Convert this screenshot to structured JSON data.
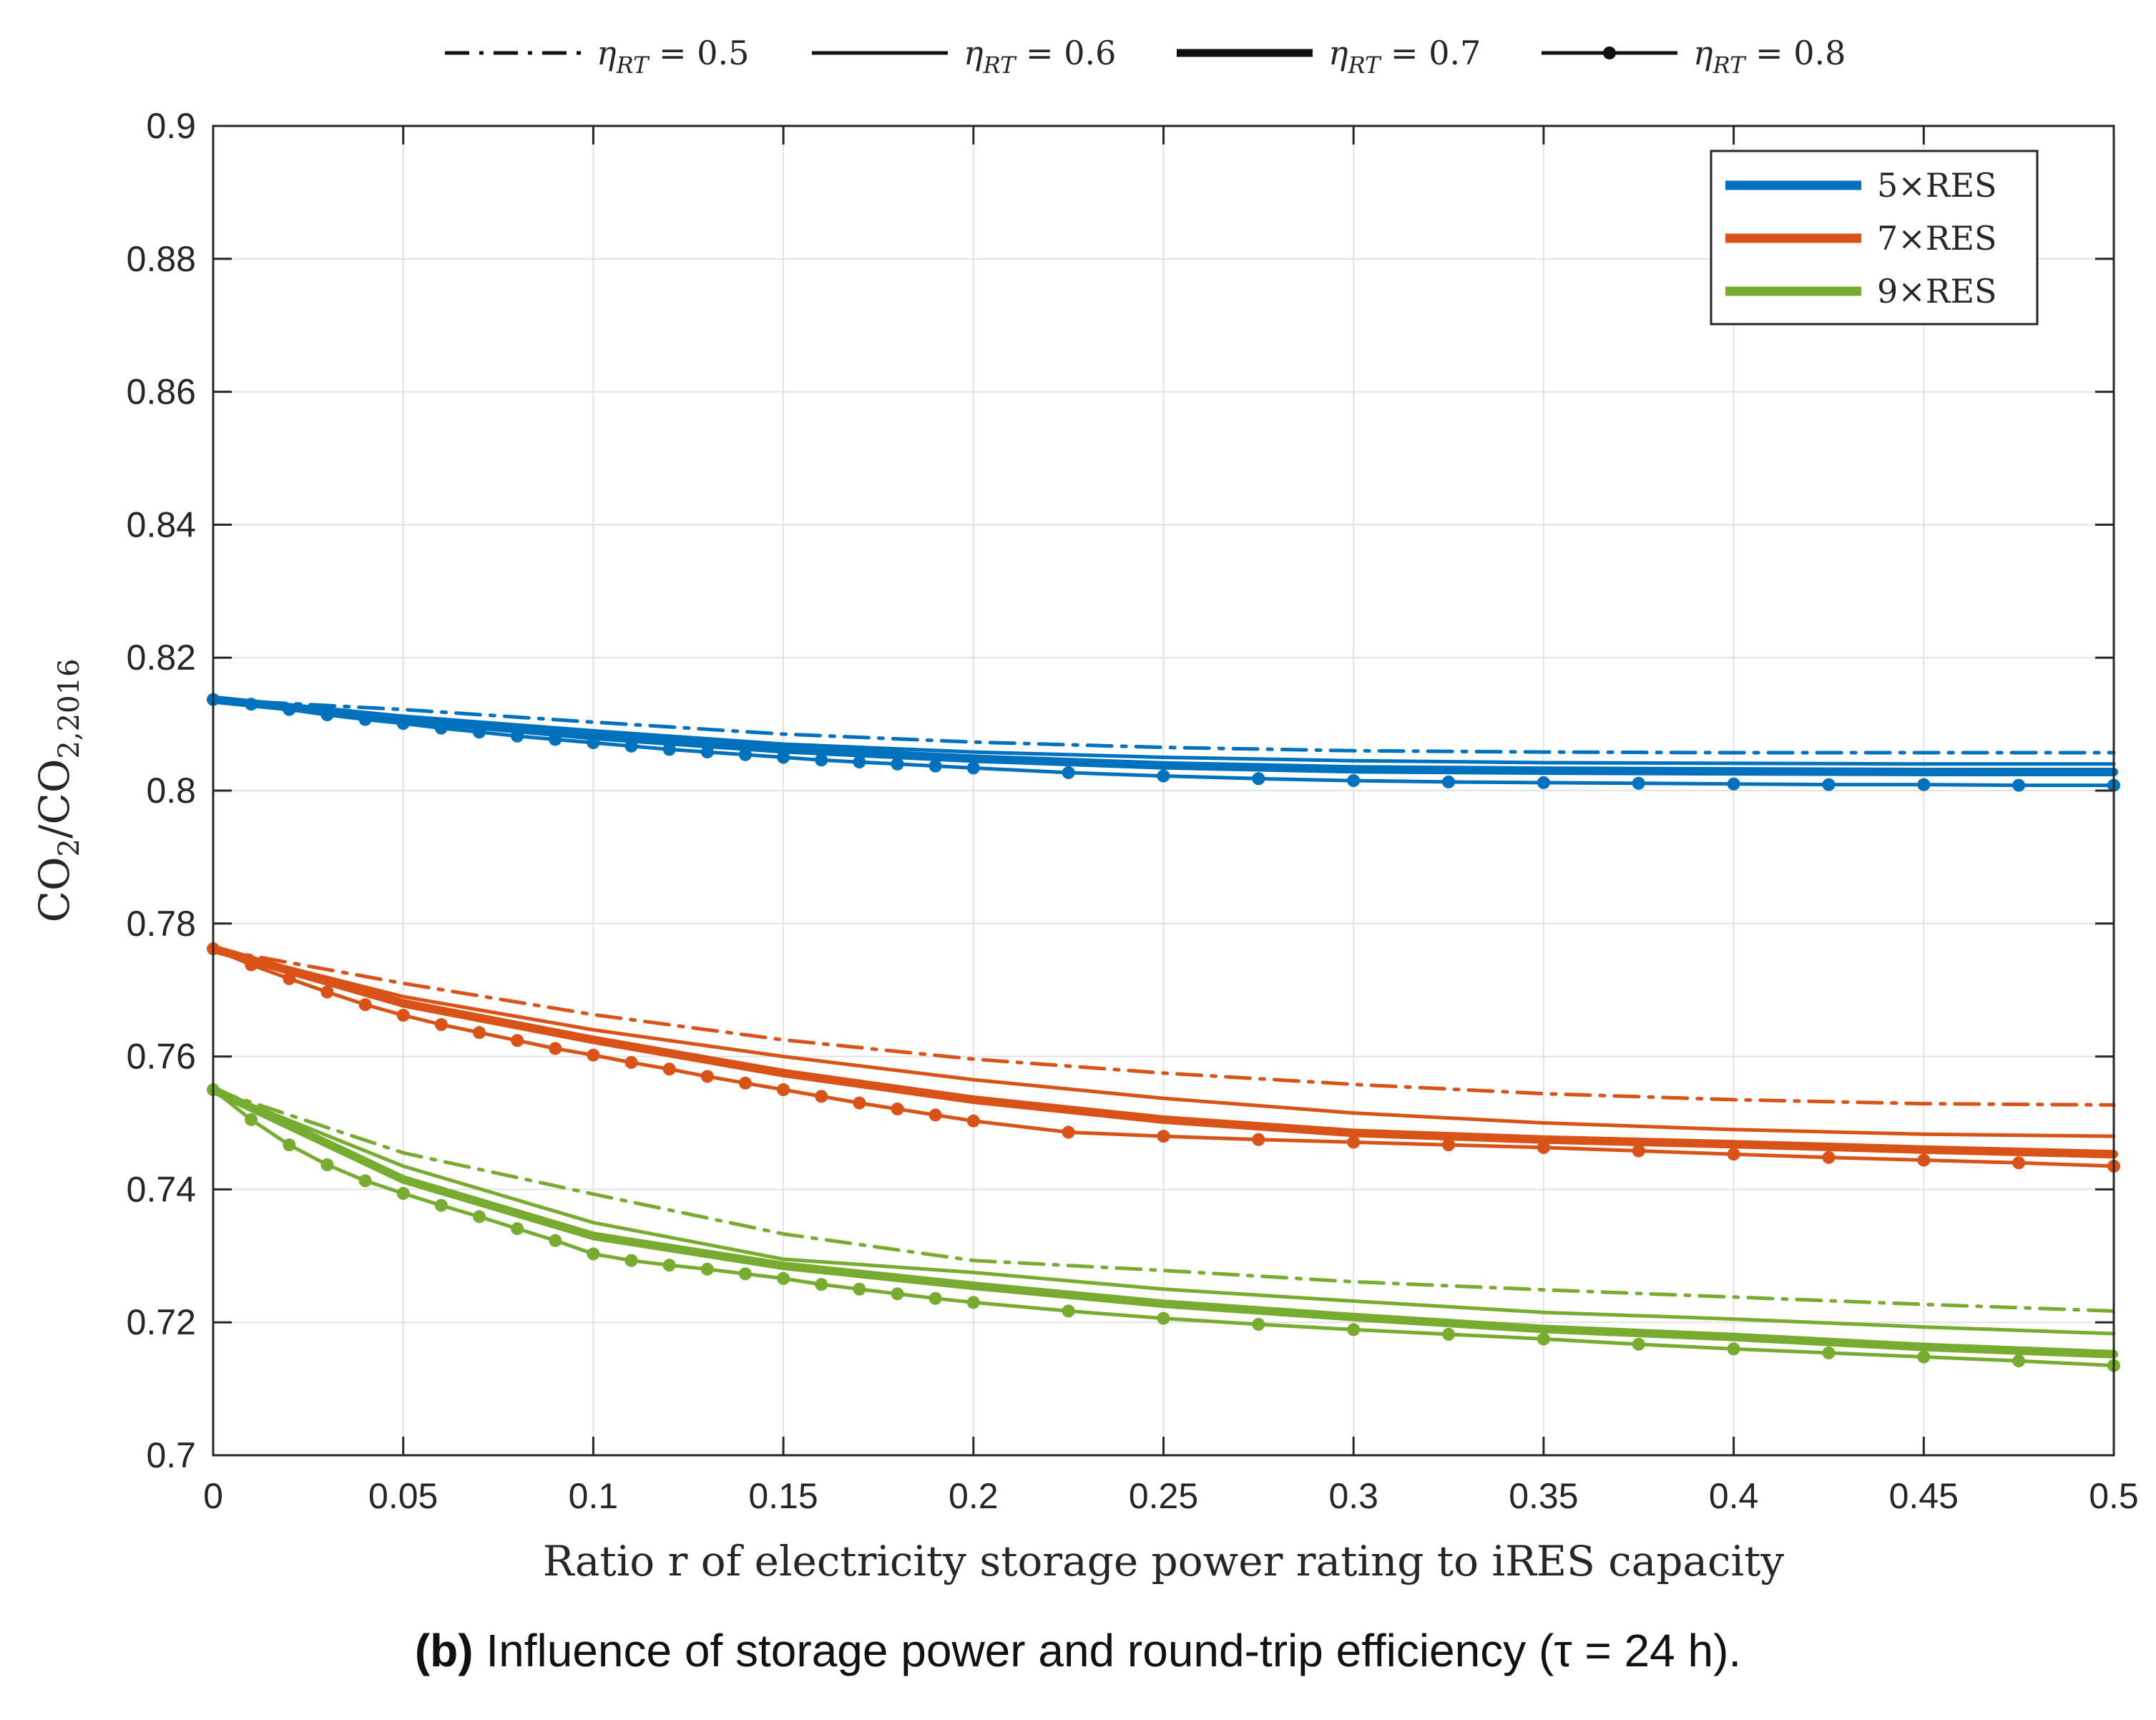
{
  "caption": {
    "label": "(b)",
    "text": " Influence of storage power and round-trip efficiency (τ = 24 h)."
  },
  "chart_data": {
    "type": "line",
    "xlabel": "Ratio r of electricity storage power rating to iRES capacity",
    "ylabel": "CO2/CO2,2016",
    "xlim": [
      0,
      0.5
    ],
    "ylim": [
      0.7,
      0.9
    ],
    "xticks": [
      0,
      0.05,
      0.1,
      0.15,
      0.2,
      0.25,
      0.3,
      0.35,
      0.4,
      0.45,
      0.5
    ],
    "xtick_labels": [
      "0",
      "0.05",
      "0.1",
      "0.15",
      "0.2",
      "0.25",
      "0.3",
      "0.35",
      "0.4",
      "0.45",
      "0.5"
    ],
    "yticks": [
      0.7,
      0.72,
      0.74,
      0.76,
      0.78,
      0.8,
      0.82,
      0.84,
      0.86,
      0.88,
      0.9
    ],
    "ytick_labels": [
      "0.7",
      "0.72",
      "0.74",
      "0.76",
      "0.78",
      "0.8",
      "0.82",
      "0.84",
      "0.86",
      "0.88",
      "0.9"
    ],
    "grid": true,
    "legend_position": "top-right",
    "colors": {
      "5×RES": "#0072bd",
      "7×RES": "#d95319",
      "9×RES": "#77ac30"
    },
    "style_legend": [
      {
        "label": "ηRT = 0.5",
        "symbol": "η",
        "subscript": "RT",
        "value": " = 0.5",
        "style": "dashdot"
      },
      {
        "label": "ηRT = 0.6",
        "symbol": "η",
        "subscript": "RT",
        "value": " = 0.6",
        "style": "thin"
      },
      {
        "label": "ηRT = 0.7",
        "symbol": "η",
        "subscript": "RT",
        "value": " = 0.7",
        "style": "thick"
      },
      {
        "label": "ηRT = 0.8",
        "symbol": "η",
        "subscript": "RT",
        "value": " = 0.8",
        "style": "dots"
      }
    ],
    "color_legend": [
      "5×RES",
      "7×RES",
      "9×RES"
    ],
    "series": [
      {
        "name": "5×RES, ηRT = 0.5",
        "group": "5×RES",
        "style": "dashdot",
        "x": [
          0,
          0.05,
          0.1,
          0.15,
          0.2,
          0.25,
          0.3,
          0.35,
          0.4,
          0.45,
          0.5
        ],
        "y": [
          0.8137,
          0.8122,
          0.8103,
          0.8085,
          0.8073,
          0.8065,
          0.806,
          0.8058,
          0.8057,
          0.8057,
          0.8057
        ]
      },
      {
        "name": "5×RES, ηRT = 0.6",
        "group": "5×RES",
        "style": "thin",
        "x": [
          0,
          0.05,
          0.1,
          0.15,
          0.2,
          0.25,
          0.3,
          0.35,
          0.4,
          0.45,
          0.5
        ],
        "y": [
          0.8137,
          0.8112,
          0.809,
          0.807,
          0.8058,
          0.805,
          0.8045,
          0.8042,
          0.8041,
          0.804,
          0.804
        ]
      },
      {
        "name": "5×RES, ηRT = 0.7",
        "group": "5×RES",
        "style": "thick",
        "x": [
          0,
          0.05,
          0.1,
          0.15,
          0.2,
          0.25,
          0.3,
          0.35,
          0.4,
          0.45,
          0.5
        ],
        "y": [
          0.8137,
          0.8108,
          0.8082,
          0.8062,
          0.8048,
          0.8038,
          0.8032,
          0.803,
          0.8029,
          0.8028,
          0.8028
        ]
      },
      {
        "name": "5×RES, ηRT = 0.8",
        "group": "5×RES",
        "style": "dots",
        "x": [
          0,
          0.01,
          0.02,
          0.03,
          0.04,
          0.05,
          0.06,
          0.07,
          0.08,
          0.09,
          0.1,
          0.11,
          0.12,
          0.13,
          0.14,
          0.15,
          0.16,
          0.17,
          0.18,
          0.19,
          0.2,
          0.225,
          0.25,
          0.275,
          0.3,
          0.325,
          0.35,
          0.375,
          0.4,
          0.425,
          0.45,
          0.475,
          0.5
        ],
        "y": [
          0.8137,
          0.813,
          0.8122,
          0.8114,
          0.8107,
          0.8101,
          0.8094,
          0.8088,
          0.8082,
          0.8077,
          0.8072,
          0.8067,
          0.8062,
          0.8058,
          0.8054,
          0.805,
          0.8046,
          0.8043,
          0.804,
          0.8037,
          0.8034,
          0.8027,
          0.8022,
          0.8018,
          0.8015,
          0.8013,
          0.8012,
          0.8011,
          0.801,
          0.8009,
          0.8009,
          0.8008,
          0.8008
        ]
      },
      {
        "name": "7×RES, ηRT = 0.5",
        "group": "7×RES",
        "style": "dashdot",
        "x": [
          0,
          0.05,
          0.1,
          0.15,
          0.2,
          0.25,
          0.3,
          0.35,
          0.4,
          0.45,
          0.5
        ],
        "y": [
          0.7762,
          0.771,
          0.7663,
          0.7625,
          0.7596,
          0.7575,
          0.7558,
          0.7544,
          0.7535,
          0.7529,
          0.7527
        ]
      },
      {
        "name": "7×RES, ηRT = 0.6",
        "group": "7×RES",
        "style": "thin",
        "x": [
          0,
          0.05,
          0.1,
          0.15,
          0.2,
          0.25,
          0.3,
          0.35,
          0.4,
          0.45,
          0.5
        ],
        "y": [
          0.7762,
          0.769,
          0.764,
          0.76,
          0.7565,
          0.7537,
          0.7515,
          0.75,
          0.749,
          0.7483,
          0.748
        ]
      },
      {
        "name": "7×RES, ηRT = 0.7",
        "group": "7×RES",
        "style": "thick",
        "x": [
          0,
          0.05,
          0.1,
          0.15,
          0.2,
          0.25,
          0.3,
          0.35,
          0.4,
          0.45,
          0.5
        ],
        "y": [
          0.7762,
          0.768,
          0.7625,
          0.7575,
          0.7535,
          0.7505,
          0.7485,
          0.7475,
          0.7468,
          0.746,
          0.7453
        ]
      },
      {
        "name": "7×RES, ηRT = 0.8",
        "group": "7×RES",
        "style": "dots",
        "x": [
          0,
          0.01,
          0.02,
          0.03,
          0.04,
          0.05,
          0.06,
          0.07,
          0.08,
          0.09,
          0.1,
          0.11,
          0.12,
          0.13,
          0.14,
          0.15,
          0.16,
          0.17,
          0.18,
          0.19,
          0.2,
          0.225,
          0.25,
          0.275,
          0.3,
          0.325,
          0.35,
          0.375,
          0.4,
          0.425,
          0.45,
          0.475,
          0.5
        ],
        "y": [
          0.7762,
          0.7738,
          0.7717,
          0.7697,
          0.7678,
          0.7662,
          0.7648,
          0.7636,
          0.7624,
          0.7612,
          0.7602,
          0.7591,
          0.7581,
          0.757,
          0.756,
          0.755,
          0.754,
          0.753,
          0.7521,
          0.7512,
          0.7503,
          0.7486,
          0.748,
          0.7475,
          0.7471,
          0.7467,
          0.7463,
          0.7458,
          0.7453,
          0.7448,
          0.7444,
          0.744,
          0.7435
        ]
      },
      {
        "name": "9×RES, ηRT = 0.5",
        "group": "9×RES",
        "style": "dashdot",
        "x": [
          0,
          0.05,
          0.1,
          0.15,
          0.2,
          0.25,
          0.3,
          0.35,
          0.4,
          0.45,
          0.5
        ],
        "y": [
          0.755,
          0.7455,
          0.7393,
          0.7333,
          0.7293,
          0.7278,
          0.7261,
          0.7249,
          0.7238,
          0.7227,
          0.7217
        ]
      },
      {
        "name": "9×RES, ηRT = 0.6",
        "group": "9×RES",
        "style": "thin",
        "x": [
          0,
          0.05,
          0.1,
          0.15,
          0.2,
          0.25,
          0.3,
          0.35,
          0.4,
          0.45,
          0.5
        ],
        "y": [
          0.755,
          0.7435,
          0.735,
          0.7295,
          0.7275,
          0.725,
          0.7232,
          0.7215,
          0.7205,
          0.7193,
          0.7183
        ]
      },
      {
        "name": "9×RES, ηRT = 0.7",
        "group": "9×RES",
        "style": "thick",
        "x": [
          0,
          0.05,
          0.1,
          0.15,
          0.2,
          0.25,
          0.3,
          0.35,
          0.4,
          0.45,
          0.5
        ],
        "y": [
          0.755,
          0.7415,
          0.733,
          0.7285,
          0.7255,
          0.7228,
          0.7208,
          0.719,
          0.7178,
          0.7163,
          0.7152
        ]
      },
      {
        "name": "9×RES, ηRT = 0.8",
        "group": "9×RES",
        "style": "dots",
        "x": [
          0,
          0.01,
          0.02,
          0.03,
          0.04,
          0.05,
          0.06,
          0.07,
          0.08,
          0.09,
          0.1,
          0.11,
          0.12,
          0.13,
          0.14,
          0.15,
          0.16,
          0.17,
          0.18,
          0.19,
          0.2,
          0.225,
          0.25,
          0.275,
          0.3,
          0.325,
          0.35,
          0.375,
          0.4,
          0.425,
          0.45,
          0.475,
          0.5
        ],
        "y": [
          0.755,
          0.7505,
          0.7467,
          0.7437,
          0.7413,
          0.7394,
          0.7376,
          0.7359,
          0.7341,
          0.7323,
          0.7303,
          0.7293,
          0.7286,
          0.728,
          0.7273,
          0.7266,
          0.7257,
          0.725,
          0.7243,
          0.7236,
          0.723,
          0.7217,
          0.7206,
          0.7197,
          0.7189,
          0.7182,
          0.7175,
          0.7167,
          0.716,
          0.7154,
          0.7148,
          0.7142,
          0.7135
        ]
      }
    ]
  }
}
